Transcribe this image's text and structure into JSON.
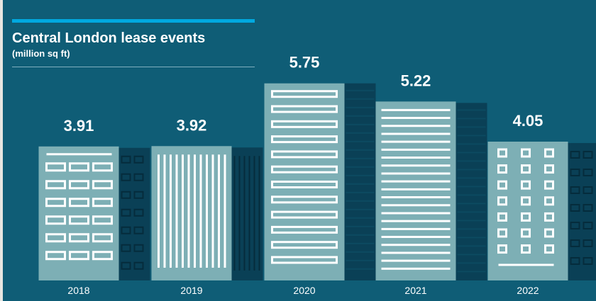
{
  "header": {
    "title": "Central London lease events",
    "subtitle": "(million sq ft)"
  },
  "colors": {
    "background": "#0f5d76",
    "building_front": "#7dafb5",
    "building_back": "#0a4056",
    "accent": "#00a9e0",
    "window": "#ffffff"
  },
  "chart_data": {
    "type": "bar",
    "title": "Central London lease events",
    "subtitle": "(million sq ft)",
    "categories": [
      "2018",
      "2019",
      "2020",
      "2021",
      "2022"
    ],
    "values": [
      3.91,
      3.92,
      5.75,
      5.22,
      4.05
    ],
    "value_labels": [
      "3.91",
      "3.92",
      "5.75",
      "5.22",
      "4.05"
    ],
    "xlabel": "",
    "ylabel": "",
    "grid": false,
    "legend": "none",
    "style": "buildings"
  }
}
